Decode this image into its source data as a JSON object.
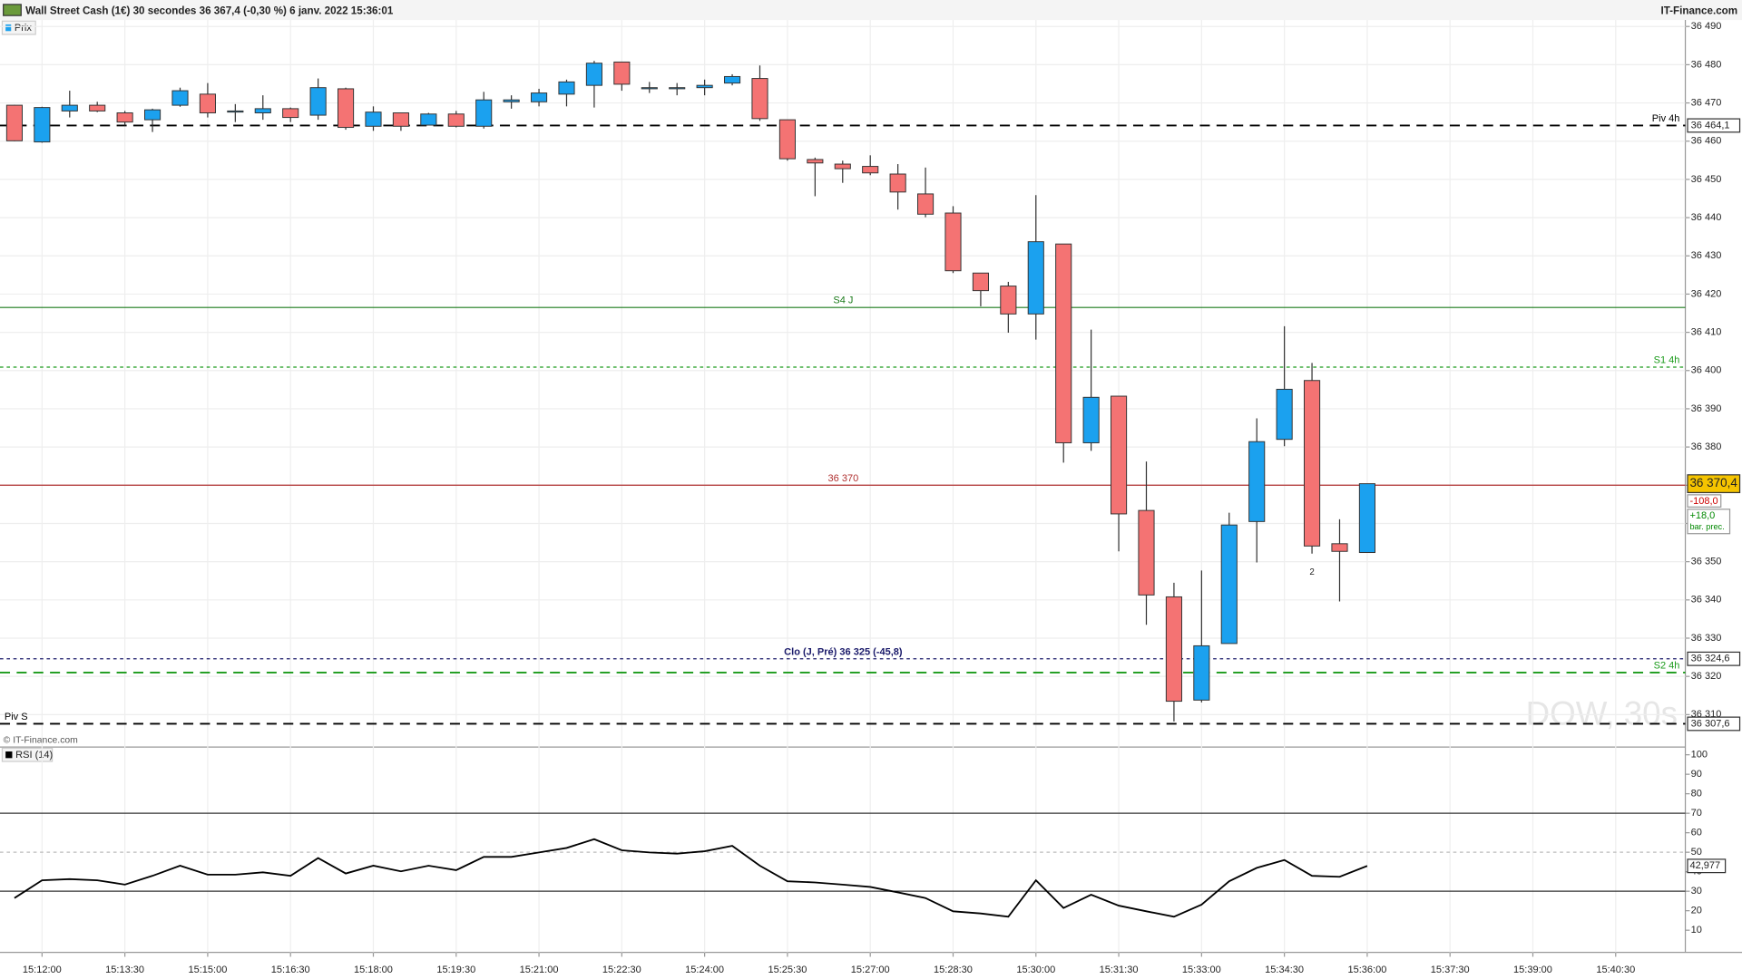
{
  "header": {
    "title": "Wall Street Cash (1€) 30 secondes 36 367,4 (-0,30 %) 6 janv. 2022 15:36:01",
    "brand": "IT-Finance.com",
    "price_legend": "Prix",
    "copyright": "© IT-Finance.com",
    "rsi_legend": "RSI (14)",
    "watermark": "DOW, 30s"
  },
  "chart_data": [
    {
      "type": "candlestick",
      "open": [
        36469.4,
        36459.8,
        36467.9,
        36469.4,
        36467.4,
        36465.6,
        36469.4,
        36472.3,
        36467.9,
        36467.4,
        36468.5,
        36466.8,
        36473.7,
        36463.9,
        36467.4,
        36464.2,
        36467.1,
        36463.9,
        36470.3,
        36470.3,
        36472.3,
        36474.6,
        36480.7,
        36474,
        36474,
        36474,
        36475.2,
        36476.4,
        36465.6,
        36455.2,
        36454,
        36453.4,
        36451.4,
        36446.2,
        36441.2,
        36425.5,
        36422.1,
        36414.8,
        36433.1,
        36381.1,
        36393.3,
        36363.4,
        36340.8,
        36313.8,
        36328.6,
        36360.5,
        36382,
        36397.4,
        36354.7,
        36352.4
      ],
      "high": [
        36469.5,
        36469,
        36473.2,
        36470.3,
        36467.9,
        36468.5,
        36474,
        36475.2,
        36469.7,
        36472,
        36468.8,
        36476.4,
        36474,
        36469.1,
        36467.4,
        36467.4,
        36467.9,
        36472.9,
        36472,
        36473.7,
        36476.1,
        36481,
        36480.7,
        36475.5,
        36475.2,
        36476.1,
        36477.5,
        36479.8,
        36465.6,
        36455.7,
        36454.9,
        36456.3,
        36454,
        36453.1,
        36443,
        36425.5,
        36423.2,
        36445.9,
        36433.1,
        36410.7,
        36393.3,
        36376.2,
        36344.5,
        36347.7,
        36362.8,
        36387.5,
        36411.6,
        36402,
        36361.1,
        36370.4
      ],
      "low": [
        36460,
        36459.6,
        36466.2,
        36467.6,
        36464.1,
        36462.4,
        36469,
        36466.2,
        36465,
        36465.6,
        36465,
        36465.6,
        36463,
        36462.7,
        36462.7,
        36464.2,
        36463.6,
        36463.3,
        36468.5,
        36469.1,
        36469.1,
        36468.8,
        36473.2,
        36472.6,
        36472,
        36472,
        36474.6,
        36465.3,
        36454.9,
        36445.6,
        36449.1,
        36451.1,
        36442.1,
        36440.1,
        36425.5,
        36416.8,
        36409.9,
        36408.1,
        36375.9,
        36379,
        36352.7,
        36333.5,
        36308.2,
        36313.2,
        36328.6,
        36349.8,
        36380.2,
        36352.1,
        36339.6,
        36352.4
      ],
      "close": [
        36460.1,
        36468.8,
        36469.4,
        36467.9,
        36465,
        36468.2,
        36473.2,
        36467.4,
        36467.9,
        36468.5,
        36466.2,
        36474,
        36463.6,
        36467.6,
        36463.9,
        36467.1,
        36463.9,
        36470.8,
        36470.8,
        36472.6,
        36475.5,
        36480.4,
        36474.9,
        36474,
        36474,
        36474.6,
        36476.9,
        36465.9,
        36455.4,
        36454.3,
        36452.8,
        36451.7,
        36446.7,
        36440.9,
        36426.1,
        36420.9,
        36414.8,
        36433.7,
        36381.1,
        36393,
        36362.5,
        36341.3,
        36313.5,
        36328,
        36359.6,
        36381.4,
        36395.1,
        36354.1,
        36352.7,
        36370.4
      ],
      "up_color": "#1ba1ef",
      "down_color": "#f47373",
      "ylim": [
        36305.3,
        36491.7
      ],
      "yticks": [
        {
          "value": 36310,
          "label": "36 310"
        },
        {
          "value": 36320,
          "label": "36 320"
        },
        {
          "value": 36330,
          "label": "36 330"
        },
        {
          "value": 36340,
          "label": "36 340"
        },
        {
          "value": 36350,
          "label": "36 350"
        },
        {
          "value": 36360,
          "label": "36 360"
        },
        {
          "value": 36370,
          "label": "36 370"
        },
        {
          "value": 36380,
          "label": "36 380"
        },
        {
          "value": 36390,
          "label": "36 390"
        },
        {
          "value": 36400,
          "label": "36 400"
        },
        {
          "value": 36410,
          "label": "36 410"
        },
        {
          "value": 36420,
          "label": "36 420"
        },
        {
          "value": 36430,
          "label": "36 430"
        },
        {
          "value": 36440,
          "label": "36 440"
        },
        {
          "value": 36450,
          "label": "36 450"
        },
        {
          "value": 36460,
          "label": "36 460"
        },
        {
          "value": 36470,
          "label": "36 470"
        },
        {
          "value": 36480,
          "label": "36 480"
        },
        {
          "value": 36490,
          "label": "36 490"
        }
      ],
      "xticks": [
        "15:12:00",
        "15:13:30",
        "15:15:00",
        "15:16:30",
        "15:18:00",
        "15:19:30",
        "15:21:00",
        "15:22:30",
        "15:24:00",
        "15:25:30",
        "15:27:00",
        "15:28:30",
        "15:30:00",
        "15:31:30",
        "15:33:00",
        "15:34:30",
        "15:36:00",
        "15:37:30",
        "15:39:00",
        "15:40:30"
      ],
      "grid": true,
      "levels": [
        {
          "label": "Piv 4h",
          "value": 36464.1,
          "value_label": "36 464,1",
          "color": "#000000",
          "style": "dashed",
          "align": "right"
        },
        {
          "label": "S4 J",
          "value": 36416.5,
          "color": "#1a7a1a",
          "style": "solid",
          "align": "center"
        },
        {
          "label": "S1 4h",
          "value": 36400.9,
          "color": "#1a9a1a",
          "style": "dotted",
          "align": "right"
        },
        {
          "label": "36 370",
          "value": 36370,
          "color": "#b03030",
          "style": "solid",
          "align": "center"
        },
        {
          "label": "Clo (J, Pré) 36 325 (-45,8)",
          "value": 36324.6,
          "value_label": "36 324,6",
          "color": "#1a1a6a",
          "style": "dotted",
          "align": "center"
        },
        {
          "label": "S2 4h",
          "value": 36321,
          "color": "#1a9a1a",
          "style": "dashed",
          "align": "right"
        },
        {
          "label": "Piv S",
          "value": 36307.6,
          "value_label": "36 307,6",
          "color": "#000000",
          "style": "dashed",
          "align": "left"
        }
      ],
      "last_label": "36 370,4",
      "change": "-108,0",
      "prev_change": "+18,0",
      "prev_note": "bar. prec.",
      "marker_count": "2"
    },
    {
      "type": "line",
      "name": "RSI (14)",
      "values": [
        26.5,
        35.6,
        36.2,
        35.6,
        33.4,
        37.9,
        43.1,
        38.5,
        38.5,
        39.7,
        37.9,
        47,
        39.1,
        43.1,
        40.2,
        43.1,
        40.8,
        47.6,
        47.6,
        49.9,
        52.2,
        56.7,
        51,
        49.9,
        49.3,
        50.5,
        53.3,
        43.1,
        35.1,
        34.5,
        33.4,
        32.2,
        29.4,
        26.5,
        19.7,
        18.6,
        16.9,
        35.6,
        21.4,
        28.2,
        22.6,
        19.7,
        16.9,
        23.1,
        35.1,
        42,
        46,
        37.9,
        37.4,
        42.977
      ],
      "value_labels_last": "42,977",
      "color": "#000000",
      "ylim": [
        0,
        100
      ],
      "yticks": [
        10,
        20,
        30,
        40,
        50,
        60,
        70,
        80,
        90,
        100
      ],
      "levels": [
        {
          "value": 70,
          "color": "#333333",
          "style": "solid"
        },
        {
          "value": 50,
          "color": "#bbbbbb",
          "style": "dotted"
        },
        {
          "value": 30,
          "color": "#333333",
          "style": "solid"
        }
      ]
    }
  ]
}
